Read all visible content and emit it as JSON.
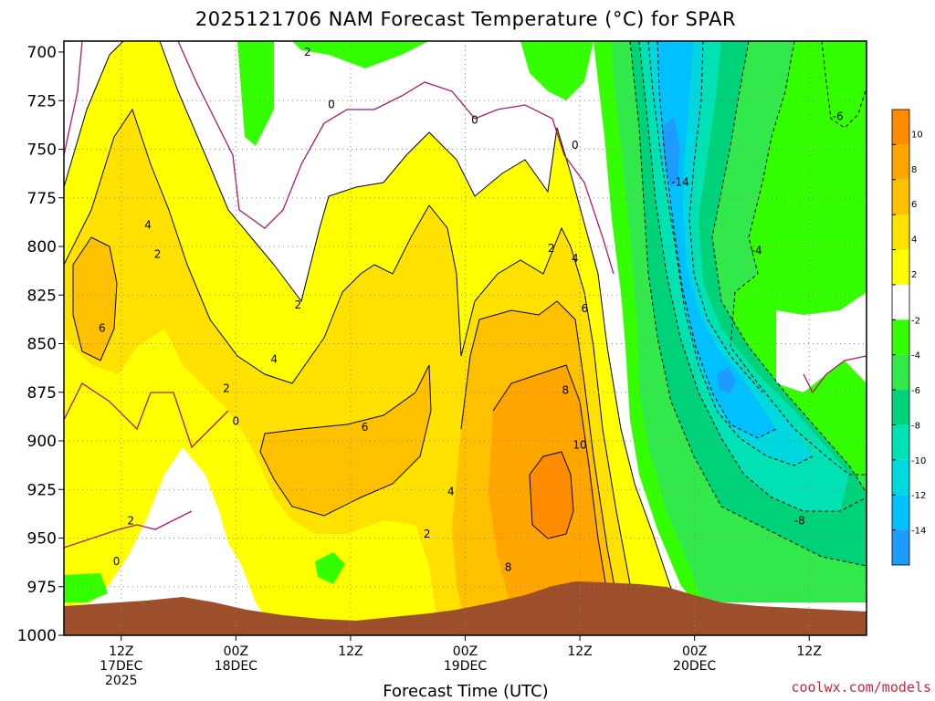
{
  "chart_data": {
    "type": "time-height contour",
    "title": "2025121706 NAM Forecast Temperature (°C) for SPAR",
    "xlabel": "Forecast Time (UTC)",
    "ylabel": "",
    "credit": "coolwx.com/models",
    "y_levels_hPa": [
      "700",
      "725",
      "750",
      "775",
      "800",
      "825",
      "850",
      "875",
      "900",
      "925",
      "950",
      "975",
      "1000"
    ],
    "ylim": [
      1000,
      700
    ],
    "x_ticks": [
      {
        "hours": 6,
        "lines": [
          "12Z",
          "17DEC",
          "2025"
        ]
      },
      {
        "hours": 18,
        "lines": [
          "00Z",
          "18DEC"
        ]
      },
      {
        "hours": 30,
        "lines": [
          "12Z"
        ]
      },
      {
        "hours": 42,
        "lines": [
          "00Z",
          "19DEC"
        ]
      },
      {
        "hours": 54,
        "lines": [
          "12Z"
        ]
      },
      {
        "hours": 66,
        "lines": [
          "00Z",
          "20DEC"
        ]
      },
      {
        "hours": 78,
        "lines": [
          "12Z"
        ]
      }
    ],
    "xlim_hours": [
      0,
      84
    ],
    "colorbar": {
      "labels": [
        "10",
        "8",
        "6",
        "4",
        "2",
        "-2",
        "-4",
        "-6",
        "-8",
        "-10",
        "-12",
        "-14"
      ],
      "colors": [
        "#ff8c00",
        "#ffa500",
        "#ffc000",
        "#ffe100",
        "#ffff00",
        "#ffffff",
        "#33ff00",
        "#33e84a",
        "#00d27a",
        "#00e2b4",
        "#00d8e0",
        "#00c0ff",
        "#1e9bff"
      ],
      "ranges": [
        "10 to 12",
        "8 to 10",
        "6 to 8",
        "4 to 6",
        "2 to 4",
        "-2 to 2",
        "-4 to -2",
        "-6 to -4",
        "-8 to -6",
        "-10 to -8",
        "-12 to -10",
        "-14 to -12",
        "< -14"
      ]
    },
    "contour_labels": [
      {
        "text": "2",
        "t": 25.5,
        "p": 700
      },
      {
        "text": "0",
        "t": 28,
        "p": 727
      },
      {
        "text": "0",
        "t": 43,
        "p": 735
      },
      {
        "text": "0",
        "t": 53.5,
        "p": 748
      },
      {
        "text": "-14",
        "t": 64.5,
        "p": 767
      },
      {
        "text": "-6",
        "t": 81,
        "p": 733
      },
      {
        "text": "-4",
        "t": 72.5,
        "p": 802
      },
      {
        "text": "4",
        "t": 8.8,
        "p": 789
      },
      {
        "text": "2",
        "t": 9.8,
        "p": 804
      },
      {
        "text": "6",
        "t": 4,
        "p": 842
      },
      {
        "text": "2",
        "t": 24.5,
        "p": 830
      },
      {
        "text": "4",
        "t": 22,
        "p": 858
      },
      {
        "text": "2",
        "t": 17,
        "p": 873
      },
      {
        "text": "0",
        "t": 18,
        "p": 890
      },
      {
        "text": "6",
        "t": 31.5,
        "p": 893
      },
      {
        "text": "4",
        "t": 40.5,
        "p": 926
      },
      {
        "text": "2",
        "t": 38,
        "p": 948
      },
      {
        "text": "2",
        "t": 7,
        "p": 941
      },
      {
        "text": "0",
        "t": 5.5,
        "p": 962
      },
      {
        "text": "8",
        "t": 52.5,
        "p": 874
      },
      {
        "text": "10",
        "t": 54,
        "p": 902
      },
      {
        "text": "8",
        "t": 46.5,
        "p": 965
      },
      {
        "text": "2",
        "t": 51,
        "p": 801
      },
      {
        "text": "4",
        "t": 53.5,
        "p": 806
      },
      {
        "text": "6",
        "t": 54.5,
        "p": 832
      },
      {
        "text": "-8",
        "t": 77,
        "p": 941
      }
    ]
  }
}
